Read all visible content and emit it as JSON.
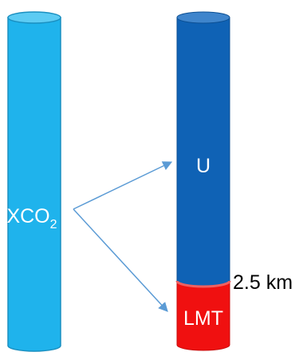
{
  "columns": {
    "left": {
      "label_main": "XCO",
      "label_subscript": "2",
      "fill": "#1FB3EC",
      "fill_top": "#5CCBF3",
      "stroke": "#1A8FC0"
    },
    "right": {
      "upper_label": "U",
      "upper_fill": "#0F62B5",
      "upper_fill_top": "#3F85CC",
      "lower_label": "LMT",
      "lower_fill": "#F01010",
      "lower_fill_top": "#F06060",
      "boundary_label": "2.5 km"
    }
  },
  "arrows": {
    "color": "#5B9BD5"
  },
  "text_colors": {
    "on_column": "#ffffff",
    "outside": "#000000"
  }
}
